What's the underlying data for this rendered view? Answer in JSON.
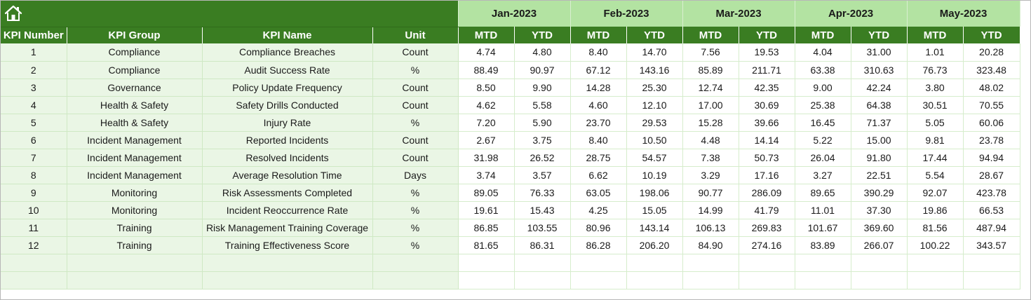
{
  "columns": {
    "kpi_number": "KPI Number",
    "kpi_group": "KPI Group",
    "kpi_name": "KPI Name",
    "unit": "Unit",
    "mtd": "MTD",
    "ytd": "YTD"
  },
  "months": [
    "Jan-2023",
    "Feb-2023",
    "Mar-2023",
    "Apr-2023",
    "May-2023"
  ],
  "rows": [
    {
      "num": "1",
      "group": "Compliance",
      "name": "Compliance Breaches",
      "unit": "Count",
      "vals": [
        "4.74",
        "4.80",
        "8.40",
        "14.70",
        "7.56",
        "19.53",
        "4.04",
        "31.00",
        "1.01",
        "20.28"
      ]
    },
    {
      "num": "2",
      "group": "Compliance",
      "name": "Audit Success Rate",
      "unit": "%",
      "vals": [
        "88.49",
        "90.97",
        "67.12",
        "143.16",
        "85.89",
        "211.71",
        "63.38",
        "310.63",
        "76.73",
        "323.48"
      ]
    },
    {
      "num": "3",
      "group": "Governance",
      "name": "Policy Update Frequency",
      "unit": "Count",
      "vals": [
        "8.50",
        "9.90",
        "14.28",
        "25.30",
        "12.74",
        "42.35",
        "9.00",
        "42.24",
        "3.80",
        "48.02"
      ]
    },
    {
      "num": "4",
      "group": "Health & Safety",
      "name": "Safety Drills Conducted",
      "unit": "Count",
      "vals": [
        "4.62",
        "5.58",
        "4.60",
        "12.10",
        "17.00",
        "30.69",
        "25.38",
        "64.38",
        "30.51",
        "70.55"
      ]
    },
    {
      "num": "5",
      "group": "Health & Safety",
      "name": "Injury Rate",
      "unit": "%",
      "vals": [
        "7.20",
        "5.90",
        "23.70",
        "29.53",
        "15.28",
        "39.66",
        "16.45",
        "71.37",
        "5.05",
        "60.06"
      ]
    },
    {
      "num": "6",
      "group": "Incident Management",
      "name": "Reported Incidents",
      "unit": "Count",
      "vals": [
        "2.67",
        "3.75",
        "8.40",
        "10.50",
        "4.48",
        "14.14",
        "5.22",
        "15.00",
        "9.81",
        "23.78"
      ]
    },
    {
      "num": "7",
      "group": "Incident Management",
      "name": "Resolved Incidents",
      "unit": "Count",
      "vals": [
        "31.98",
        "26.52",
        "28.75",
        "54.57",
        "7.38",
        "50.73",
        "26.04",
        "91.80",
        "17.44",
        "94.94"
      ]
    },
    {
      "num": "8",
      "group": "Incident Management",
      "name": "Average Resolution Time",
      "unit": "Days",
      "vals": [
        "3.74",
        "3.57",
        "6.62",
        "10.19",
        "3.29",
        "17.16",
        "3.27",
        "22.51",
        "5.54",
        "28.67"
      ]
    },
    {
      "num": "9",
      "group": "Monitoring",
      "name": "Risk Assessments Completed",
      "unit": "%",
      "vals": [
        "89.05",
        "76.33",
        "63.05",
        "198.06",
        "90.77",
        "286.09",
        "89.65",
        "390.29",
        "92.07",
        "423.78"
      ]
    },
    {
      "num": "10",
      "group": "Monitoring",
      "name": "Incident Reoccurrence Rate",
      "unit": "%",
      "vals": [
        "19.61",
        "15.43",
        "4.25",
        "15.05",
        "14.99",
        "41.79",
        "11.01",
        "37.30",
        "19.86",
        "66.53"
      ]
    },
    {
      "num": "11",
      "group": "Training",
      "name": "Risk Management Training Coverage",
      "unit": "%",
      "vals": [
        "86.85",
        "103.55",
        "80.96",
        "143.14",
        "106.13",
        "269.83",
        "101.67",
        "369.60",
        "81.56",
        "487.94"
      ]
    },
    {
      "num": "12",
      "group": "Training",
      "name": "Training Effectiveness Score",
      "unit": "%",
      "vals": [
        "81.65",
        "86.31",
        "86.28",
        "206.20",
        "84.90",
        "274.16",
        "83.89",
        "266.07",
        "100.22",
        "343.57"
      ]
    }
  ],
  "empty_rows": 2,
  "icons": {
    "home": "home-icon"
  },
  "colors": {
    "header_green": "#3a7d22",
    "month_green": "#b3e3a2",
    "left_fill": "#eaf6e5"
  }
}
